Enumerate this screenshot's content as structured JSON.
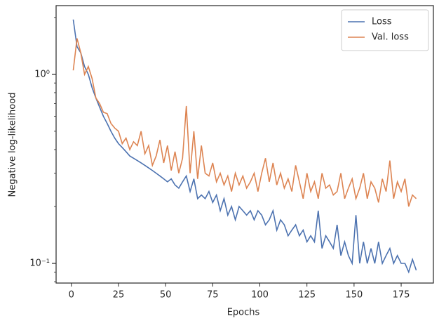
{
  "chart_data": {
    "type": "line",
    "xlabel": "Epochs",
    "ylabel": "Negative log-likelihood",
    "x": [
      1,
      3,
      5,
      7,
      9,
      11,
      13,
      15,
      17,
      19,
      21,
      23,
      25,
      27,
      29,
      31,
      33,
      35,
      37,
      39,
      41,
      43,
      45,
      47,
      49,
      51,
      53,
      55,
      57,
      59,
      61,
      63,
      65,
      67,
      69,
      71,
      73,
      75,
      77,
      79,
      81,
      83,
      85,
      87,
      89,
      91,
      93,
      95,
      97,
      99,
      101,
      103,
      105,
      107,
      109,
      111,
      113,
      115,
      117,
      119,
      121,
      123,
      125,
      127,
      129,
      131,
      133,
      135,
      137,
      139,
      141,
      143,
      145,
      147,
      149,
      151,
      153,
      155,
      157,
      159,
      161,
      163,
      165,
      167,
      169,
      171,
      173,
      175,
      177,
      179,
      181,
      183
    ],
    "series": [
      {
        "name": "Loss",
        "color": "#4c72b0",
        "values": [
          1.95,
          1.4,
          1.3,
          1.1,
          1.0,
          0.85,
          0.75,
          0.67,
          0.6,
          0.55,
          0.5,
          0.46,
          0.43,
          0.41,
          0.39,
          0.37,
          0.36,
          0.35,
          0.34,
          0.33,
          0.32,
          0.31,
          0.3,
          0.29,
          0.28,
          0.27,
          0.28,
          0.26,
          0.25,
          0.27,
          0.29,
          0.24,
          0.28,
          0.22,
          0.23,
          0.22,
          0.24,
          0.21,
          0.23,
          0.19,
          0.22,
          0.18,
          0.2,
          0.17,
          0.2,
          0.19,
          0.18,
          0.19,
          0.17,
          0.19,
          0.18,
          0.16,
          0.17,
          0.19,
          0.15,
          0.17,
          0.16,
          0.14,
          0.15,
          0.16,
          0.14,
          0.15,
          0.13,
          0.14,
          0.13,
          0.19,
          0.12,
          0.14,
          0.13,
          0.12,
          0.16,
          0.11,
          0.13,
          0.11,
          0.1,
          0.18,
          0.1,
          0.13,
          0.1,
          0.12,
          0.1,
          0.13,
          0.1,
          0.11,
          0.12,
          0.1,
          0.11,
          0.1,
          0.1,
          0.09,
          0.105,
          0.092
        ]
      },
      {
        "name": "Val. loss",
        "color": "#dd8452",
        "values": [
          1.05,
          1.55,
          1.3,
          1.0,
          1.1,
          0.95,
          0.75,
          0.7,
          0.63,
          0.62,
          0.55,
          0.52,
          0.5,
          0.43,
          0.46,
          0.4,
          0.44,
          0.42,
          0.5,
          0.38,
          0.42,
          0.33,
          0.37,
          0.45,
          0.34,
          0.42,
          0.31,
          0.39,
          0.3,
          0.36,
          0.68,
          0.3,
          0.5,
          0.28,
          0.42,
          0.3,
          0.29,
          0.34,
          0.27,
          0.3,
          0.26,
          0.29,
          0.24,
          0.3,
          0.26,
          0.29,
          0.25,
          0.27,
          0.3,
          0.24,
          0.3,
          0.36,
          0.27,
          0.34,
          0.26,
          0.3,
          0.25,
          0.28,
          0.24,
          0.33,
          0.27,
          0.22,
          0.3,
          0.24,
          0.27,
          0.22,
          0.3,
          0.25,
          0.26,
          0.23,
          0.24,
          0.3,
          0.22,
          0.25,
          0.28,
          0.22,
          0.25,
          0.3,
          0.22,
          0.27,
          0.25,
          0.21,
          0.28,
          0.24,
          0.35,
          0.22,
          0.27,
          0.24,
          0.28,
          0.2,
          0.23,
          0.22
        ]
      }
    ],
    "xlim": [
      -8.1,
      192.1
    ],
    "xticks": [
      0,
      25,
      50,
      75,
      100,
      125,
      150,
      175
    ],
    "ylim": [
      0.0787,
      2.31
    ],
    "ylog": true,
    "yticks": [
      {
        "value": 0.1,
        "label": "10⁻¹"
      },
      {
        "value": 1,
        "label": "10⁰"
      }
    ],
    "yminorticks": [
      0.08,
      0.09,
      0.2,
      0.3,
      0.4,
      0.5,
      0.6,
      0.7,
      0.8,
      0.9,
      2
    ],
    "legend": "upper right"
  }
}
